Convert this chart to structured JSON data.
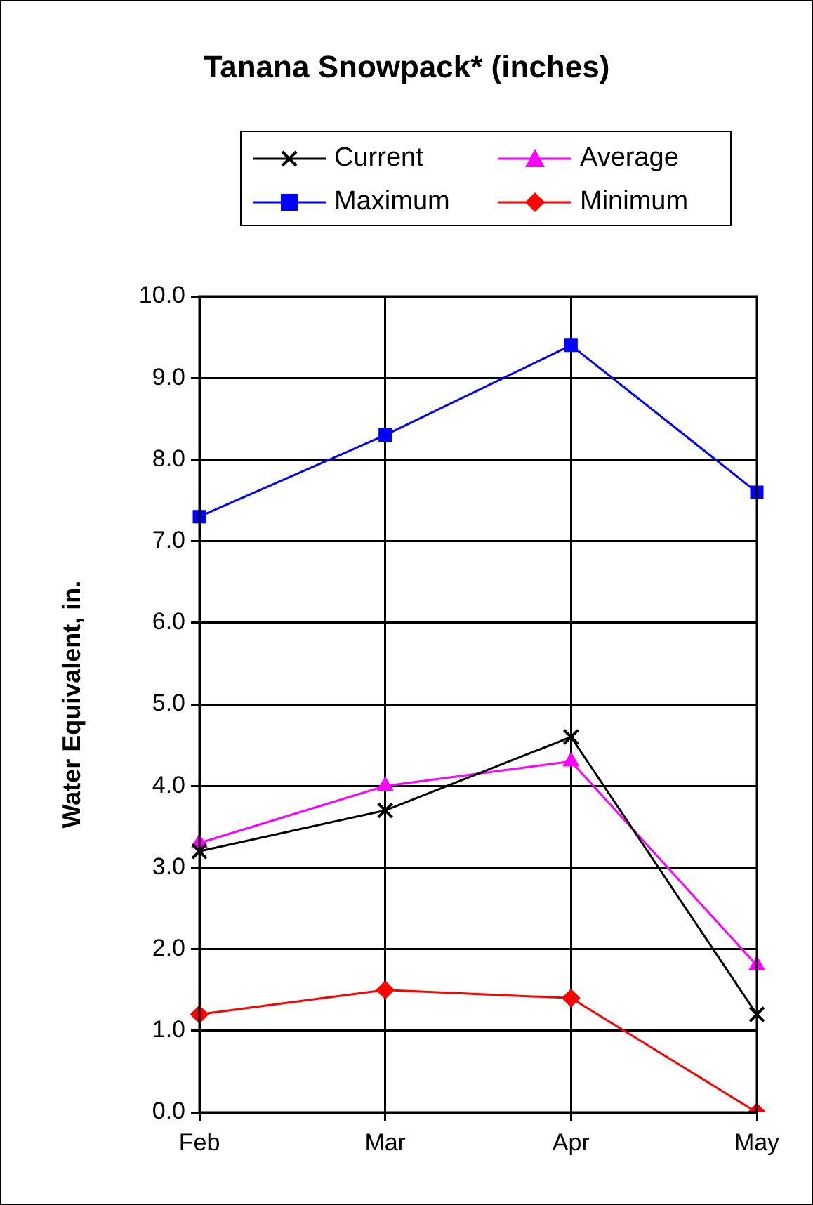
{
  "chart_data": {
    "type": "line",
    "title": "Tanana Snowpack* (inches)",
    "ylabel": "Water Equivalent, in.",
    "categories": [
      "Feb",
      "Mar",
      "Apr",
      "May"
    ],
    "series": [
      {
        "name": "Current",
        "color": "#000000",
        "marker": "cross",
        "values": [
          3.2,
          3.7,
          4.6,
          1.2
        ]
      },
      {
        "name": "Average",
        "color": "#ff00ff",
        "marker": "triangle",
        "values": [
          3.3,
          4.0,
          4.3,
          1.8
        ]
      },
      {
        "name": "Maximum",
        "color": "#0000ff",
        "marker": "square",
        "values": [
          7.3,
          8.3,
          9.4,
          7.6
        ]
      },
      {
        "name": "Minimum",
        "color": "#ff0000",
        "marker": "diamond",
        "values": [
          1.2,
          1.5,
          1.4,
          0.0
        ]
      }
    ],
    "ylim": [
      0,
      10
    ],
    "yticks": [
      {
        "value": 0,
        "label": "0.0"
      },
      {
        "value": 1,
        "label": "1.0"
      },
      {
        "value": 2,
        "label": "2.0"
      },
      {
        "value": 3,
        "label": "3.0"
      },
      {
        "value": 4,
        "label": "4.0"
      },
      {
        "value": 5,
        "label": "5.0"
      },
      {
        "value": 6,
        "label": "6.0"
      },
      {
        "value": 7,
        "label": "7.0"
      },
      {
        "value": 8,
        "label": "8.0"
      },
      {
        "value": 9,
        "label": "9.0"
      },
      {
        "value": 10,
        "label": "10.0"
      }
    ],
    "grid": true,
    "legend": "top",
    "line_style": "solid"
  }
}
